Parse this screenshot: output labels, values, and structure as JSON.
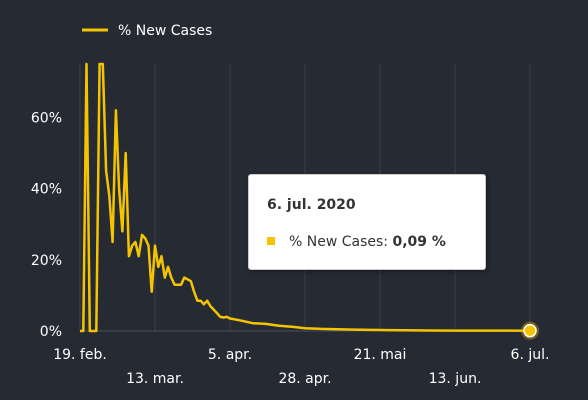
{
  "chart_data": {
    "type": "line",
    "title": "",
    "xlabel": "",
    "ylabel": "",
    "ylim": [
      0,
      75
    ],
    "grid": {
      "vertical": true,
      "horizontal": false
    },
    "legend_position": "top-left",
    "x_ticks": [
      "19. feb.",
      "13. mar.",
      "5. apr.",
      "28. apr.",
      "21. mai",
      "13. jun.",
      "6. jul."
    ],
    "y_ticks": [
      "0%",
      "20%",
      "40%",
      "60%"
    ],
    "series": [
      {
        "name": "% New Cases",
        "color": "#f5c400",
        "x": [
          "2020-02-19",
          "2020-02-20",
          "2020-02-21",
          "2020-02-22",
          "2020-02-23",
          "2020-02-24",
          "2020-02-25",
          "2020-02-26",
          "2020-02-27",
          "2020-02-28",
          "2020-02-29",
          "2020-03-01",
          "2020-03-02",
          "2020-03-03",
          "2020-03-04",
          "2020-03-05",
          "2020-03-06",
          "2020-03-07",
          "2020-03-08",
          "2020-03-09",
          "2020-03-10",
          "2020-03-11",
          "2020-03-12",
          "2020-03-13",
          "2020-03-14",
          "2020-03-15",
          "2020-03-16",
          "2020-03-17",
          "2020-03-18",
          "2020-03-19",
          "2020-03-20",
          "2020-03-21",
          "2020-03-22",
          "2020-03-23",
          "2020-03-24",
          "2020-03-25",
          "2020-03-26",
          "2020-03-27",
          "2020-03-28",
          "2020-03-29",
          "2020-03-30",
          "2020-03-31",
          "2020-04-01",
          "2020-04-02",
          "2020-04-03",
          "2020-04-04",
          "2020-04-05",
          "2020-04-08",
          "2020-04-12",
          "2020-04-16",
          "2020-04-20",
          "2020-04-24",
          "2020-04-28",
          "2020-05-03",
          "2020-05-08",
          "2020-05-13",
          "2020-05-18",
          "2020-05-23",
          "2020-05-28",
          "2020-06-05",
          "2020-06-13",
          "2020-06-21",
          "2020-06-29",
          "2020-07-06"
        ],
        "values": [
          0,
          0,
          75,
          0,
          0,
          0,
          75,
          75,
          45,
          38,
          25,
          62,
          40,
          28,
          50,
          21,
          24,
          25,
          21,
          27,
          26,
          24,
          11,
          24,
          18,
          21,
          15,
          18,
          15,
          13,
          13,
          13,
          15,
          14.5,
          14,
          11,
          8.5,
          8.5,
          7.5,
          8.5,
          7,
          6,
          5,
          4,
          3.8,
          4,
          3.5,
          3,
          2.2,
          2,
          1.5,
          1.2,
          0.8,
          0.6,
          0.5,
          0.4,
          0.3,
          0.25,
          0.2,
          0.15,
          0.12,
          0.1,
          0.1,
          0.09
        ]
      }
    ]
  },
  "tooltip": {
    "date": "6. jul. 2020",
    "series_label": "% New Cases: ",
    "value": "0,09 %"
  }
}
